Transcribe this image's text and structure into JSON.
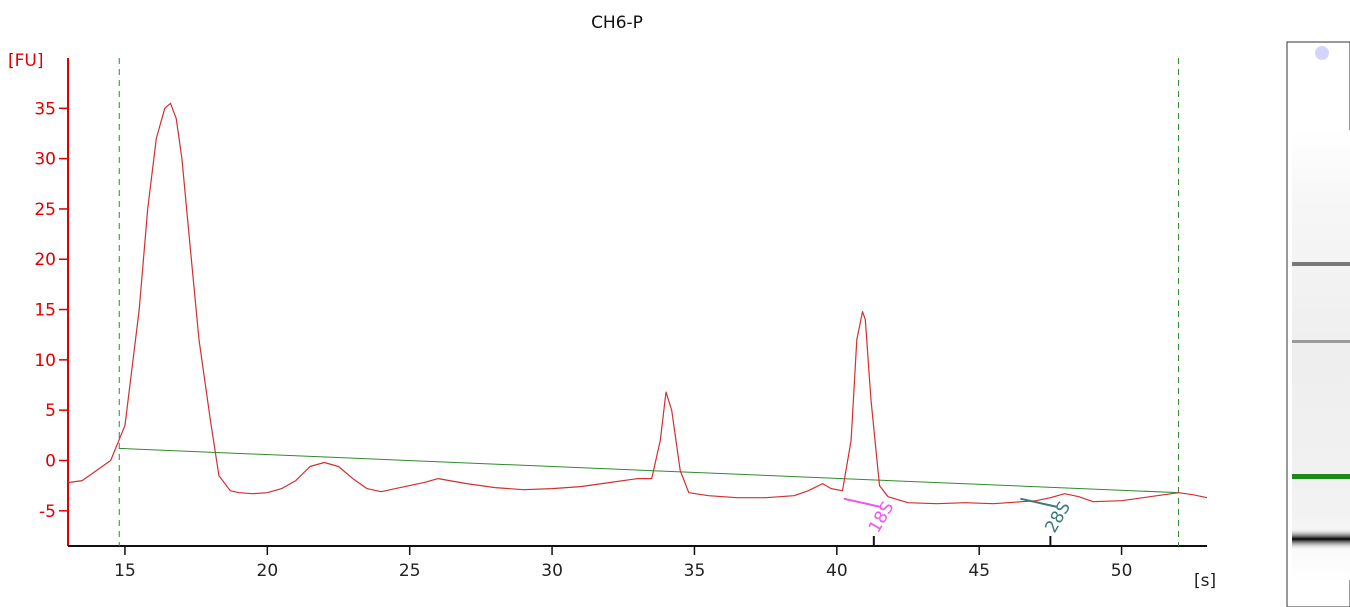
{
  "chart_data": {
    "type": "line",
    "title": "CH6-P",
    "ylabel": "[FU]",
    "xlabel": "[s]",
    "xlim": [
      13,
      53
    ],
    "ylim": [
      -8.5,
      40
    ],
    "xticks": [
      15,
      20,
      25,
      30,
      35,
      40,
      45,
      50
    ],
    "yticks": [
      -5,
      0,
      5,
      10,
      15,
      20,
      25,
      30,
      35
    ],
    "grid": false,
    "series": [
      {
        "color": "#d03030",
        "x": [
          13.0,
          13.5,
          14.0,
          14.5,
          15.0,
          15.5,
          15.8,
          16.1,
          16.4,
          16.6,
          16.8,
          17.0,
          17.3,
          17.6,
          18.0,
          18.3,
          18.7,
          19.0,
          19.5,
          20.0,
          20.5,
          21.0,
          21.5,
          22.0,
          22.5,
          23.0,
          23.5,
          24.0,
          24.5,
          25.0,
          25.5,
          26.0,
          27.0,
          28.0,
          29.0,
          30.0,
          31.0,
          32.0,
          33.0,
          33.5,
          33.8,
          34.0,
          34.2,
          34.5,
          34.8,
          35.5,
          36.5,
          37.5,
          38.5,
          39.0,
          39.5,
          39.8,
          40.2,
          40.5,
          40.7,
          40.9,
          41.0,
          41.2,
          41.5,
          41.8,
          42.5,
          43.5,
          44.5,
          45.5,
          46.5,
          47.0,
          47.5,
          48.0,
          48.5,
          49.0,
          50.0,
          51.0,
          52.0,
          52.5,
          53.0
        ],
        "y": [
          -2.2,
          -2.0,
          -1.0,
          0.0,
          3.5,
          15.0,
          25.0,
          32.0,
          35.0,
          35.5,
          34.0,
          30.0,
          21.0,
          12.0,
          4.0,
          -1.5,
          -3.0,
          -3.2,
          -3.3,
          -3.2,
          -2.8,
          -2.0,
          -0.6,
          -0.2,
          -0.6,
          -1.8,
          -2.8,
          -3.1,
          -2.8,
          -2.5,
          -2.2,
          -1.8,
          -2.3,
          -2.7,
          -2.9,
          -2.8,
          -2.6,
          -2.2,
          -1.8,
          -1.8,
          2.0,
          6.8,
          5.0,
          -1.0,
          -3.2,
          -3.5,
          -3.7,
          -3.7,
          -3.5,
          -3.0,
          -2.3,
          -2.8,
          -3.0,
          2.0,
          12.0,
          14.8,
          14.0,
          6.0,
          -2.5,
          -3.6,
          -4.2,
          -4.3,
          -4.2,
          -4.3,
          -4.1,
          -4.0,
          -3.7,
          -3.3,
          -3.6,
          -4.1,
          -4.0,
          -3.6,
          -3.2,
          -3.4,
          -3.7
        ]
      }
    ],
    "baseline": {
      "color": "#2e8b2e",
      "x": [
        14.8,
        52.0
      ],
      "y": [
        1.2,
        -3.2
      ]
    },
    "vlines": {
      "color": "#2e8b2e",
      "x": [
        14.8,
        52.0
      ]
    },
    "markers": [
      {
        "label": "18S",
        "x": 41.3,
        "color": "#ee55ee"
      },
      {
        "label": "28S",
        "x": 47.5,
        "color": "#3a7a7a"
      }
    ]
  },
  "gel_lane": {
    "bands": [
      {
        "kind": "gray",
        "color": "#777777"
      },
      {
        "kind": "gray",
        "color": "#999999"
      },
      {
        "kind": "marker",
        "color": "#1a8a1a"
      },
      {
        "kind": "dark",
        "color": "#111111"
      }
    ]
  }
}
